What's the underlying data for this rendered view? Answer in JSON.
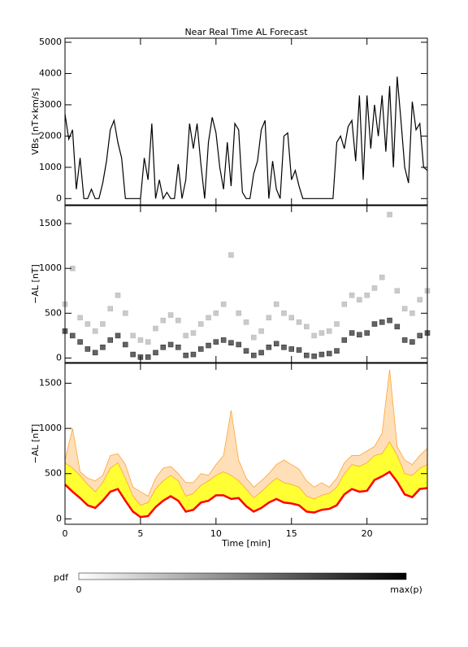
{
  "chart_data": [
    {
      "type": "line",
      "title": "Near Real Time AL Forecast",
      "y_label": "VBs [nT×km/s]",
      "xlim": [
        0,
        24
      ],
      "ylim": [
        -200,
        5130
      ],
      "yticks": [
        0,
        1000,
        2000,
        3000,
        4000,
        5000
      ],
      "x": [
        0,
        0.25,
        0.5,
        0.75,
        1,
        1.25,
        1.5,
        1.75,
        2,
        2.25,
        2.5,
        2.75,
        3,
        3.25,
        3.5,
        3.75,
        4,
        4.25,
        4.5,
        4.75,
        5,
        5.25,
        5.5,
        5.75,
        6,
        6.25,
        6.5,
        6.75,
        7,
        7.25,
        7.5,
        7.75,
        8,
        8.25,
        8.5,
        8.75,
        9,
        9.25,
        9.5,
        9.75,
        10,
        10.25,
        10.5,
        10.75,
        11,
        11.25,
        11.5,
        11.75,
        12,
        12.25,
        12.5,
        12.75,
        13,
        13.25,
        13.5,
        13.75,
        14,
        14.25,
        14.5,
        14.75,
        15,
        15.25,
        15.5,
        15.75,
        16,
        16.25,
        16.5,
        16.75,
        17,
        17.25,
        17.5,
        17.75,
        18,
        18.25,
        18.5,
        18.75,
        19,
        19.25,
        19.5,
        19.75,
        20,
        20.25,
        20.5,
        20.75,
        21,
        21.25,
        21.5,
        21.75,
        22,
        22.25,
        22.5,
        22.75,
        23,
        23.25,
        23.5,
        23.75,
        24
      ],
      "series": [
        {
          "color": "#000000",
          "values": [
            2700,
            1900,
            2200,
            300,
            1300,
            0,
            0,
            300,
            0,
            0,
            500,
            1200,
            2200,
            2500,
            1800,
            1300,
            0,
            0,
            0,
            0,
            0,
            1300,
            600,
            2400,
            0,
            600,
            0,
            200,
            0,
            0,
            1100,
            0,
            600,
            2400,
            1600,
            2400,
            1100,
            0,
            1800,
            2600,
            2100,
            1000,
            300,
            1800,
            400,
            2400,
            2200,
            200,
            0,
            0,
            800,
            1200,
            2200,
            2500,
            0,
            1200,
            300,
            0,
            2000,
            2100,
            600,
            900,
            400,
            0,
            0,
            0,
            0,
            0,
            0,
            0,
            0,
            0,
            1800,
            2000,
            1600,
            2300,
            2500,
            1200,
            3300,
            600,
            3300,
            1600,
            3000,
            2000,
            3300,
            1500,
            3600,
            1000,
            3900,
            2500,
            1000,
            500,
            3100,
            2200,
            2400,
            1000,
            900
          ]
        }
      ]
    },
    {
      "type": "heatmap",
      "y_label": "−AL [nT]",
      "xlim": [
        0,
        24
      ],
      "ylim": [
        -50,
        1700
      ],
      "yticks": [
        0,
        500,
        1000,
        1500
      ],
      "x": [
        0,
        0.5,
        1,
        1.5,
        2,
        2.5,
        3,
        3.5,
        4,
        4.5,
        5,
        5.5,
        6,
        6.5,
        7,
        7.5,
        8,
        8.5,
        9,
        9.5,
        10,
        10.5,
        11,
        11.5,
        12,
        12.5,
        13,
        13.5,
        14,
        14.5,
        15,
        15.5,
        16,
        16.5,
        17,
        17.5,
        18,
        18.5,
        19,
        19.5,
        20,
        20.5,
        21,
        21.5,
        22,
        22.5,
        23,
        23.5,
        24
      ],
      "series": [
        {
          "color": "#222222",
          "values": [
            300,
            250,
            180,
            100,
            60,
            120,
            200,
            250,
            150,
            40,
            10,
            10,
            60,
            120,
            150,
            120,
            30,
            40,
            100,
            140,
            180,
            200,
            170,
            150,
            80,
            30,
            60,
            120,
            160,
            120,
            100,
            90,
            30,
            20,
            40,
            50,
            80,
            200,
            280,
            260,
            280,
            380,
            400,
            420,
            350,
            200,
            180,
            250,
            280
          ]
        },
        {
          "color": "#b4b4b4",
          "values": [
            600,
            1000,
            450,
            380,
            300,
            380,
            550,
            700,
            500,
            250,
            200,
            180,
            330,
            420,
            480,
            420,
            250,
            280,
            380,
            450,
            500,
            600,
            1150,
            500,
            400,
            230,
            300,
            450,
            600,
            500,
            450,
            400,
            350,
            250,
            280,
            300,
            380,
            600,
            700,
            650,
            700,
            780,
            900,
            1600,
            750,
            550,
            500,
            650,
            750
          ]
        }
      ]
    },
    {
      "type": "band",
      "y_label": "−AL [nT]",
      "x_label": "Time [min]",
      "xlim": [
        0,
        24
      ],
      "ylim": [
        -60,
        1720
      ],
      "yticks": [
        0,
        500,
        1000,
        1500
      ],
      "xticks": [
        0,
        5,
        10,
        15,
        20
      ],
      "x": [
        0,
        0.5,
        1,
        1.5,
        2,
        2.5,
        3,
        3.5,
        4,
        4.5,
        5,
        5.5,
        6,
        6.5,
        7,
        7.5,
        8,
        8.5,
        9,
        9.5,
        10,
        10.5,
        11,
        11.5,
        12,
        12.5,
        13,
        13.5,
        14,
        14.5,
        15,
        15.5,
        16,
        16.5,
        17,
        17.5,
        18,
        18.5,
        19,
        19.5,
        20,
        20.5,
        21,
        21.5,
        22,
        22.5,
        23,
        23.5,
        24
      ],
      "series": [
        {
          "color": "#ff0000",
          "values": [
            380,
            300,
            230,
            150,
            120,
            200,
            300,
            330,
            200,
            80,
            20,
            30,
            130,
            200,
            250,
            200,
            80,
            100,
            180,
            200,
            260,
            260,
            220,
            230,
            140,
            80,
            120,
            180,
            220,
            180,
            170,
            150,
            80,
            70,
            100,
            110,
            150,
            270,
            330,
            300,
            310,
            430,
            470,
            520,
            410,
            270,
            240,
            330,
            340
          ]
        },
        {
          "color": "#ffff33",
          "values": [
            620,
            560,
            480,
            380,
            300,
            400,
            560,
            620,
            450,
            250,
            150,
            180,
            330,
            420,
            480,
            420,
            250,
            280,
            370,
            420,
            480,
            520,
            480,
            420,
            330,
            230,
            300,
            380,
            450,
            400,
            380,
            350,
            250,
            220,
            260,
            280,
            350,
            500,
            600,
            580,
            620,
            700,
            720,
            850,
            700,
            500,
            480,
            560,
            600
          ]
        },
        {
          "color": "#ffa333",
          "values": [
            650,
            1000,
            520,
            450,
            420,
            480,
            700,
            720,
            600,
            350,
            300,
            250,
            450,
            560,
            580,
            500,
            400,
            400,
            500,
            480,
            600,
            700,
            1200,
            650,
            450,
            350,
            420,
            500,
            600,
            650,
            600,
            550,
            420,
            350,
            400,
            350,
            450,
            620,
            700,
            700,
            750,
            800,
            950,
            1650,
            800,
            650,
            600,
            700,
            780
          ]
        }
      ]
    }
  ],
  "colorbar": {
    "label": "pdf",
    "min_label": "0",
    "max_label": "max(p)"
  }
}
